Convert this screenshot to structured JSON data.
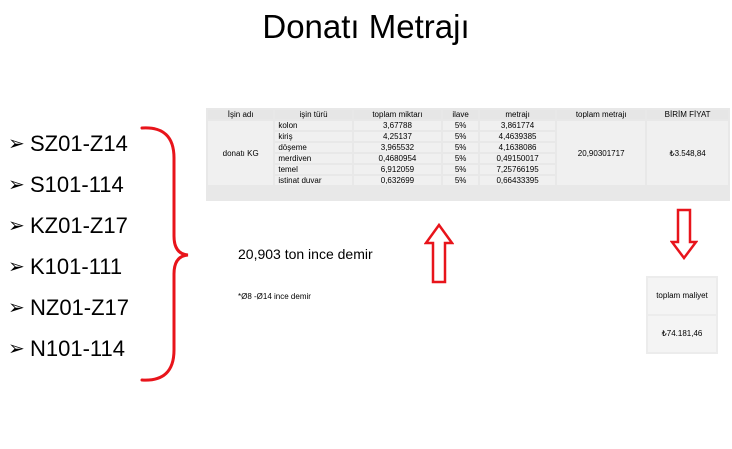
{
  "title": "Donatı Metrajı",
  "bullets": [
    "SZ01-Z14",
    "S101-114",
    "KZ01-Z17",
    "K101-111",
    "NZ01-Z17",
    "N101-114"
  ],
  "bullet_glyph": "➢",
  "info_text": "20,903 ton ince demir",
  "info_note": "*Ø8 -Ø14 ince demir",
  "table": {
    "headers": [
      "İşin adı",
      "işin türü",
      "toplam miktarı",
      "ilave",
      "metrajı",
      "toplam metrajı",
      "BİRİM FİYAT"
    ],
    "job_name": "donatı KG",
    "rows": [
      {
        "type": "kolon",
        "amount": "3,67788",
        "extra": "5%",
        "qty": "3,861774"
      },
      {
        "type": "kiriş",
        "amount": "4,25137",
        "extra": "5%",
        "qty": "4,4639385"
      },
      {
        "type": "döşeme",
        "amount": "3,965532",
        "extra": "5%",
        "qty": "4,1638086"
      },
      {
        "type": "merdiven",
        "amount": "0,4680954",
        "extra": "5%",
        "qty": "0,49150017"
      },
      {
        "type": "temel",
        "amount": "6,912059",
        "extra": "5%",
        "qty": "7,25766195"
      },
      {
        "type": "istinat duvar",
        "amount": "0,632699",
        "extra": "5%",
        "qty": "0,66433395"
      }
    ],
    "total_qty": "20,90301717",
    "unit_price": "₺3.548,84"
  },
  "cost": {
    "header": "toplam maliyet",
    "value": "₺74.181,46"
  },
  "colors": {
    "accent": "#e8141b"
  }
}
